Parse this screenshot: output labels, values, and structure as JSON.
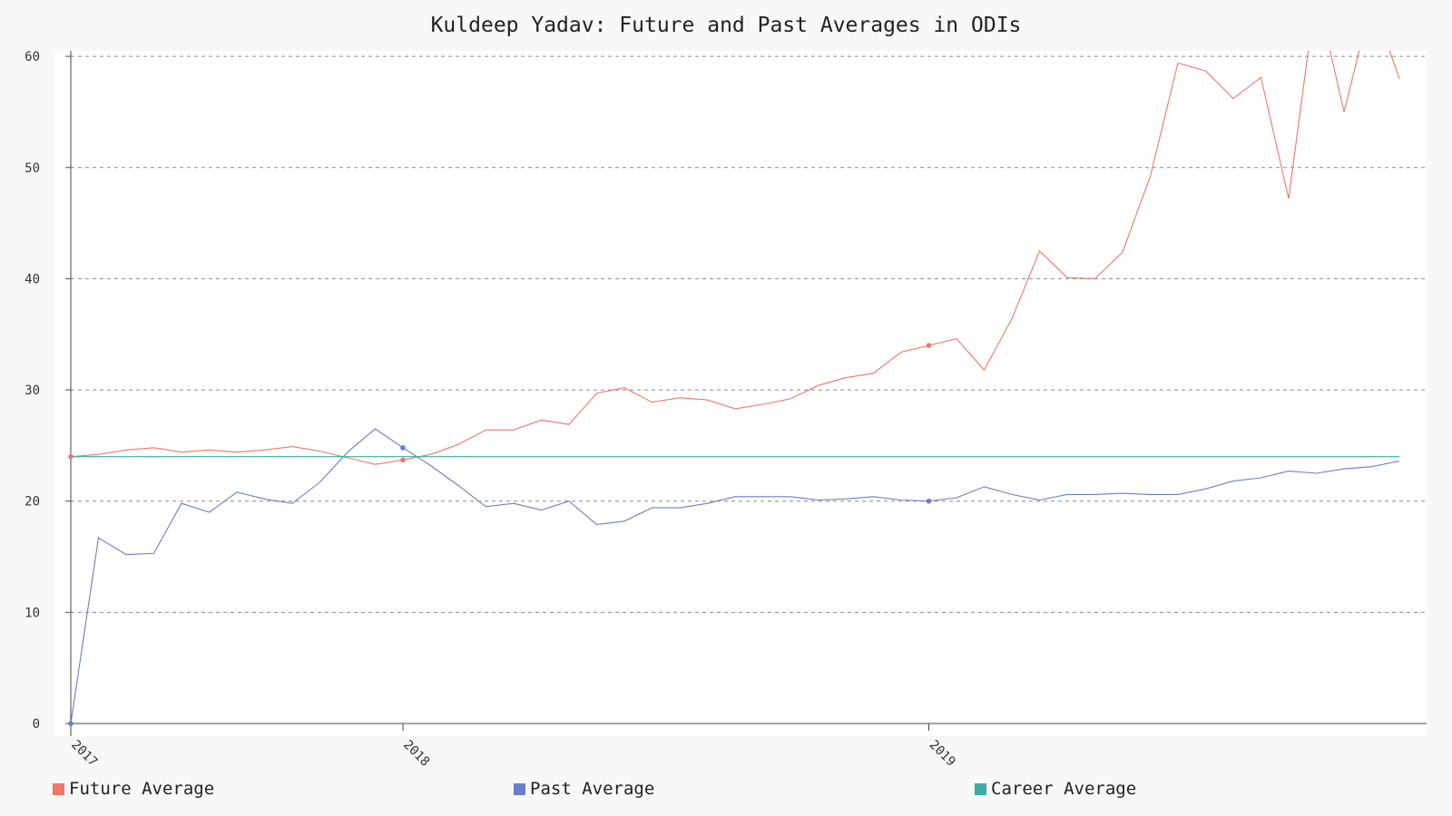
{
  "chart_data": {
    "type": "line",
    "title": "Kuldeep Yadav: Future and Past Averages in ODIs",
    "xlabel": "",
    "ylabel": "",
    "x_tick_labels": [
      "2017",
      "2018",
      "2019"
    ],
    "x_tick_index": [
      0,
      12,
      31
    ],
    "y_ticks": [
      0,
      10,
      20,
      30,
      40,
      50,
      60
    ],
    "ylim": [
      0,
      60.5
    ],
    "grid": true,
    "legend_placement": "bottom",
    "series": [
      {
        "name": "Future Average",
        "color": "#f0766a",
        "values": [
          24.0,
          24.2,
          24.6,
          24.8,
          24.4,
          24.6,
          24.4,
          24.6,
          24.9,
          24.5,
          23.9,
          23.3,
          23.7,
          24.2,
          25.1,
          26.4,
          26.4,
          27.3,
          26.9,
          29.7,
          30.2,
          28.9,
          29.3,
          29.1,
          28.3,
          28.7,
          29.2,
          30.4,
          31.1,
          31.5,
          33.4,
          34.0,
          34.6,
          31.8,
          36.4,
          42.5,
          40.1,
          40.0,
          42.4,
          49.2,
          59.4,
          58.7,
          56.2,
          58.1,
          47.2,
          66.0,
          55.0,
          65.0,
          58.0
        ],
        "markers": [
          0,
          12,
          31
        ]
      },
      {
        "name": "Past Average",
        "color": "#6b7ec9",
        "values": [
          0.0,
          16.7,
          15.2,
          15.3,
          19.8,
          19.0,
          20.8,
          20.2,
          19.8,
          21.7,
          24.4,
          26.5,
          24.8,
          23.2,
          21.4,
          19.5,
          19.8,
          19.2,
          20.0,
          17.9,
          18.2,
          19.4,
          19.4,
          19.8,
          20.4,
          20.4,
          20.4,
          20.1,
          20.2,
          20.4,
          20.1,
          20.0,
          20.3,
          21.3,
          20.6,
          20.1,
          20.6,
          20.6,
          20.7,
          20.6,
          20.6,
          21.1,
          21.8,
          22.1,
          22.7,
          22.5,
          22.9,
          23.1,
          23.6
        ],
        "markers": [
          0,
          12,
          31
        ]
      },
      {
        "name": "Career Average",
        "color": "#3aaea0",
        "values": [
          24.0,
          24.0,
          24.0,
          24.0,
          24.0,
          24.0,
          24.0,
          24.0,
          24.0,
          24.0,
          24.0,
          24.0,
          24.0,
          24.0,
          24.0,
          24.0,
          24.0,
          24.0,
          24.0,
          24.0,
          24.0,
          24.0,
          24.0,
          24.0,
          24.0,
          24.0,
          24.0,
          24.0,
          24.0,
          24.0,
          24.0,
          24.0,
          24.0,
          24.0,
          24.0,
          24.0,
          24.0,
          24.0,
          24.0,
          24.0,
          24.0,
          24.0,
          24.0,
          24.0,
          24.0,
          24.0,
          24.0,
          24.0,
          24.0
        ],
        "markers": []
      }
    ]
  }
}
